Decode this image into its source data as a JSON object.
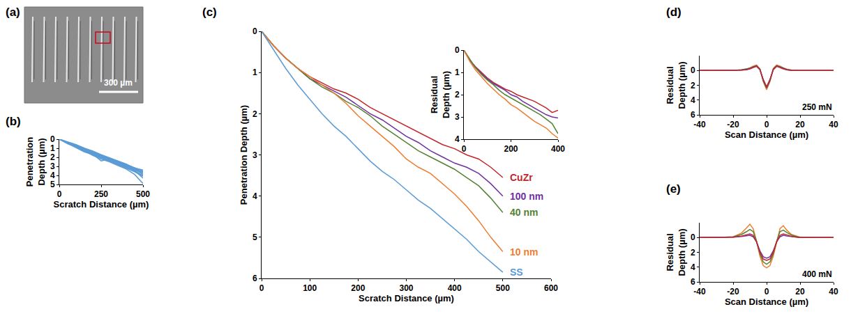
{
  "chart_data": [
    {
      "type": "image",
      "title": "(a)",
      "annotations": [
        "300 µm"
      ]
    },
    {
      "type": "line",
      "title": "(b)",
      "xlabel": "Scratch Distance (µm)",
      "ylabel": "Penetration Depth (µm)",
      "x": [
        0,
        50,
        100,
        150,
        200,
        250,
        300,
        350,
        400,
        450,
        500
      ],
      "series": [
        {
          "color": "#5B9BD5",
          "values": [
            0,
            0.35,
            0.75,
            1.1,
            1.5,
            1.85,
            2.2,
            2.55,
            2.9,
            3.3,
            3.6
          ]
        },
        {
          "color": "#5B9BD5",
          "values": [
            0,
            0.4,
            0.8,
            1.2,
            1.55,
            1.9,
            2.3,
            2.6,
            3.0,
            3.4,
            3.8
          ]
        },
        {
          "color": "#5B9BD5",
          "values": [
            0,
            0.3,
            0.65,
            1.0,
            1.4,
            1.75,
            2.1,
            2.45,
            2.8,
            3.1,
            3.5
          ]
        },
        {
          "color": "#5B9BD5",
          "values": [
            0,
            0.45,
            0.9,
            1.3,
            1.7,
            2.1,
            2.4,
            2.8,
            3.2,
            3.6,
            4.1
          ]
        },
        {
          "color": "#5B9BD5",
          "values": [
            0,
            0.35,
            0.7,
            1.15,
            1.6,
            2.0,
            2.3,
            2.7,
            3.1,
            3.5,
            4.0
          ]
        },
        {
          "color": "#5B9BD5",
          "values": [
            0,
            0.5,
            0.85,
            1.2,
            1.65,
            2.4,
            2.2,
            2.6,
            3.0,
            3.3,
            3.7
          ]
        },
        {
          "color": "#5B9BD5",
          "values": [
            0,
            0.3,
            0.6,
            1.0,
            1.3,
            1.7,
            2.05,
            2.4,
            2.75,
            3.2,
            3.4
          ]
        },
        {
          "color": "#5B9BD5",
          "values": [
            0,
            0.4,
            0.85,
            1.3,
            1.8,
            2.2,
            2.5,
            2.9,
            3.3,
            3.9,
            4.9
          ]
        },
        {
          "color": "#5B9BD5",
          "values": [
            0,
            0.35,
            0.8,
            1.1,
            1.45,
            1.8,
            2.2,
            2.5,
            2.85,
            3.25,
            3.9
          ]
        },
        {
          "color": "#5B9BD5",
          "values": [
            0,
            0.45,
            0.95,
            1.4,
            1.7,
            2.0,
            2.35,
            2.75,
            3.1,
            3.45,
            4.3
          ]
        }
      ],
      "xlim": [
        0,
        500
      ],
      "xticks": [
        0,
        250,
        500
      ],
      "ylim": [
        5,
        0
      ],
      "yticks": [
        0,
        1,
        2,
        3,
        4,
        5
      ],
      "grid": false
    },
    {
      "type": "line",
      "title": "(c)",
      "xlabel": "Scratch Distance (µm)",
      "ylabel": "Penetration Depth (µm)",
      "x": [
        0,
        25,
        50,
        75,
        100,
        125,
        150,
        175,
        200,
        225,
        250,
        275,
        300,
        325,
        350,
        375,
        400,
        425,
        450,
        475,
        500
      ],
      "series": [
        {
          "name": "CuZr",
          "color": "#C0272D",
          "values": [
            0,
            0.35,
            0.65,
            0.9,
            1.1,
            1.25,
            1.4,
            1.5,
            1.65,
            1.85,
            2.0,
            2.15,
            2.3,
            2.45,
            2.6,
            2.75,
            2.85,
            3.0,
            3.1,
            3.3,
            3.55
          ]
        },
        {
          "name": "100 nm",
          "color": "#7030A0",
          "values": [
            0,
            0.35,
            0.65,
            0.9,
            1.15,
            1.3,
            1.45,
            1.6,
            1.8,
            2.0,
            2.15,
            2.35,
            2.55,
            2.7,
            2.9,
            3.05,
            3.2,
            3.3,
            3.45,
            3.7,
            4.0
          ]
        },
        {
          "name": "40 nm",
          "color": "#548235",
          "values": [
            0,
            0.35,
            0.65,
            0.9,
            1.15,
            1.35,
            1.5,
            1.7,
            1.85,
            2.05,
            2.3,
            2.5,
            2.7,
            2.9,
            3.05,
            3.2,
            3.35,
            3.55,
            3.75,
            4.05,
            4.4
          ]
        },
        {
          "name": "10 nm",
          "color": "#ED7D31",
          "values": [
            0,
            0.35,
            0.65,
            0.9,
            1.1,
            1.3,
            1.5,
            1.75,
            2.05,
            2.3,
            2.55,
            2.8,
            3.1,
            3.3,
            3.45,
            3.7,
            3.95,
            4.25,
            4.6,
            5.0,
            5.35
          ]
        },
        {
          "name": "SS",
          "color": "#5B9BD5",
          "values": [
            0,
            0.45,
            0.9,
            1.3,
            1.65,
            2.0,
            2.3,
            2.55,
            2.85,
            3.15,
            3.4,
            3.6,
            3.85,
            4.1,
            4.3,
            4.55,
            4.8,
            5.05,
            5.35,
            5.6,
            5.85
          ]
        }
      ],
      "xlim": [
        0,
        600
      ],
      "xticks": [
        0,
        100,
        200,
        300,
        400,
        500,
        600
      ],
      "ylim": [
        6,
        0
      ],
      "yticks": [
        0,
        1,
        2,
        3,
        4,
        5,
        6
      ],
      "grid": false
    },
    {
      "type": "line",
      "ylabel": "Residual Depth (µm)",
      "x": [
        0,
        25,
        50,
        75,
        100,
        125,
        150,
        175,
        200,
        225,
        250,
        275,
        300,
        325,
        350,
        375,
        400
      ],
      "series": [
        {
          "color": "#C0272D",
          "values": [
            0,
            0.45,
            0.75,
            1.0,
            1.25,
            1.45,
            1.6,
            1.75,
            1.85,
            2.0,
            2.1,
            2.2,
            2.3,
            2.45,
            2.6,
            2.8,
            2.7
          ]
        },
        {
          "color": "#7030A0",
          "values": [
            0,
            0.45,
            0.8,
            1.05,
            1.3,
            1.5,
            1.65,
            1.8,
            2.0,
            2.1,
            2.3,
            2.45,
            2.6,
            2.75,
            2.9,
            3.0,
            3.05
          ]
        },
        {
          "color": "#548235",
          "values": [
            0,
            0.4,
            0.8,
            1.1,
            1.35,
            1.55,
            1.8,
            2.0,
            2.15,
            2.3,
            2.45,
            2.6,
            2.75,
            2.9,
            3.1,
            3.3,
            3.75
          ]
        },
        {
          "color": "#ED7D31",
          "values": [
            0,
            0.5,
            0.9,
            1.2,
            1.5,
            1.75,
            2.0,
            2.2,
            2.45,
            2.6,
            2.8,
            3.0,
            3.2,
            3.35,
            3.5,
            3.75,
            3.95
          ]
        }
      ],
      "xlim": [
        0,
        400
      ],
      "xticks": [
        0,
        200,
        400
      ],
      "ylim": [
        4,
        0
      ],
      "yticks": [
        0,
        1,
        2,
        3,
        4
      ],
      "grid": false
    },
    {
      "type": "line",
      "title": "(d)",
      "xlabel": "Scan Distance (µm)",
      "ylabel": "Residual Depth (µm)",
      "annotations": [
        "250 mN"
      ],
      "x": [
        -40,
        -30,
        -20,
        -15,
        -12,
        -10,
        -8,
        -6,
        -4,
        -2,
        0,
        2,
        4,
        6,
        8,
        10,
        12,
        15,
        20,
        30,
        40
      ],
      "series": [
        {
          "color": "#ED7D31",
          "values": [
            0,
            0,
            0,
            -0.1,
            -0.2,
            -0.35,
            -0.6,
            -0.75,
            -0.2,
            1.5,
            2.6,
            1.5,
            -0.3,
            -0.75,
            -0.6,
            -0.35,
            -0.2,
            -0.05,
            0,
            0,
            0
          ]
        },
        {
          "color": "#548235",
          "values": [
            0,
            0,
            0,
            -0.1,
            -0.2,
            -0.3,
            -0.5,
            -0.65,
            -0.2,
            1.4,
            2.4,
            1.4,
            -0.2,
            -0.65,
            -0.5,
            -0.3,
            -0.15,
            -0.05,
            0,
            0,
            0
          ]
        },
        {
          "color": "#7030A0",
          "values": [
            0,
            0,
            0,
            -0.05,
            -0.15,
            -0.25,
            -0.45,
            -0.6,
            -0.15,
            1.3,
            2.3,
            1.3,
            -0.15,
            -0.6,
            -0.45,
            -0.25,
            -0.1,
            0,
            0,
            0,
            0
          ]
        },
        {
          "color": "#C0272D",
          "values": [
            0,
            0,
            0,
            -0.05,
            -0.1,
            -0.2,
            -0.4,
            -0.55,
            -0.1,
            1.2,
            2.2,
            1.2,
            -0.1,
            -0.55,
            -0.4,
            -0.2,
            -0.1,
            0,
            0,
            0,
            0
          ]
        }
      ],
      "xlim": [
        -40,
        40
      ],
      "xticks": [
        -40,
        -20,
        0,
        20,
        40
      ],
      "ylim": [
        6,
        -2
      ],
      "yticks": [
        0,
        2,
        4,
        6
      ],
      "grid": false
    },
    {
      "type": "line",
      "title": "(e)",
      "xlabel": "Scan Distance (µm)",
      "ylabel": "Residual Depth (µm)",
      "annotations": [
        "400 mN"
      ],
      "x": [
        -40,
        -30,
        -20,
        -15,
        -12,
        -10,
        -8,
        -6,
        -4,
        -2,
        0,
        2,
        4,
        6,
        8,
        10,
        12,
        15,
        20,
        30,
        40
      ],
      "series": [
        {
          "color": "#ED7D31",
          "values": [
            0,
            0,
            -0.1,
            -0.6,
            -1.3,
            -1.8,
            -1.2,
            0.5,
            2.5,
            3.8,
            4.1,
            3.8,
            2.5,
            0.5,
            -1.2,
            -1.6,
            -1.0,
            -0.4,
            -0.05,
            0,
            0
          ]
        },
        {
          "color": "#548235",
          "values": [
            0,
            0,
            -0.1,
            -0.4,
            -0.8,
            -1.1,
            -0.8,
            0.5,
            2.2,
            3.3,
            3.6,
            3.3,
            2.2,
            0.5,
            -0.8,
            -1.0,
            -0.7,
            -0.3,
            0,
            0,
            0
          ]
        },
        {
          "color": "#7030A0",
          "values": [
            0,
            0,
            -0.05,
            -0.15,
            -0.25,
            -0.3,
            -0.1,
            0.6,
            1.8,
            2.6,
            2.8,
            2.6,
            1.8,
            0.6,
            -0.1,
            -0.3,
            -0.2,
            -0.1,
            0,
            0,
            0
          ]
        },
        {
          "color": "#C0272D",
          "values": [
            0,
            0,
            -0.05,
            -0.2,
            -0.4,
            -0.5,
            -0.3,
            0.6,
            2.0,
            2.9,
            3.1,
            2.9,
            2.0,
            0.6,
            -0.3,
            -0.5,
            -0.35,
            -0.15,
            0,
            0,
            0
          ]
        }
      ],
      "xlim": [
        -40,
        40
      ],
      "xticks": [
        -40,
        -20,
        0,
        20,
        40
      ],
      "ylim": [
        6,
        -2
      ],
      "yticks": [
        0,
        2,
        4,
        6
      ],
      "grid": false
    }
  ]
}
